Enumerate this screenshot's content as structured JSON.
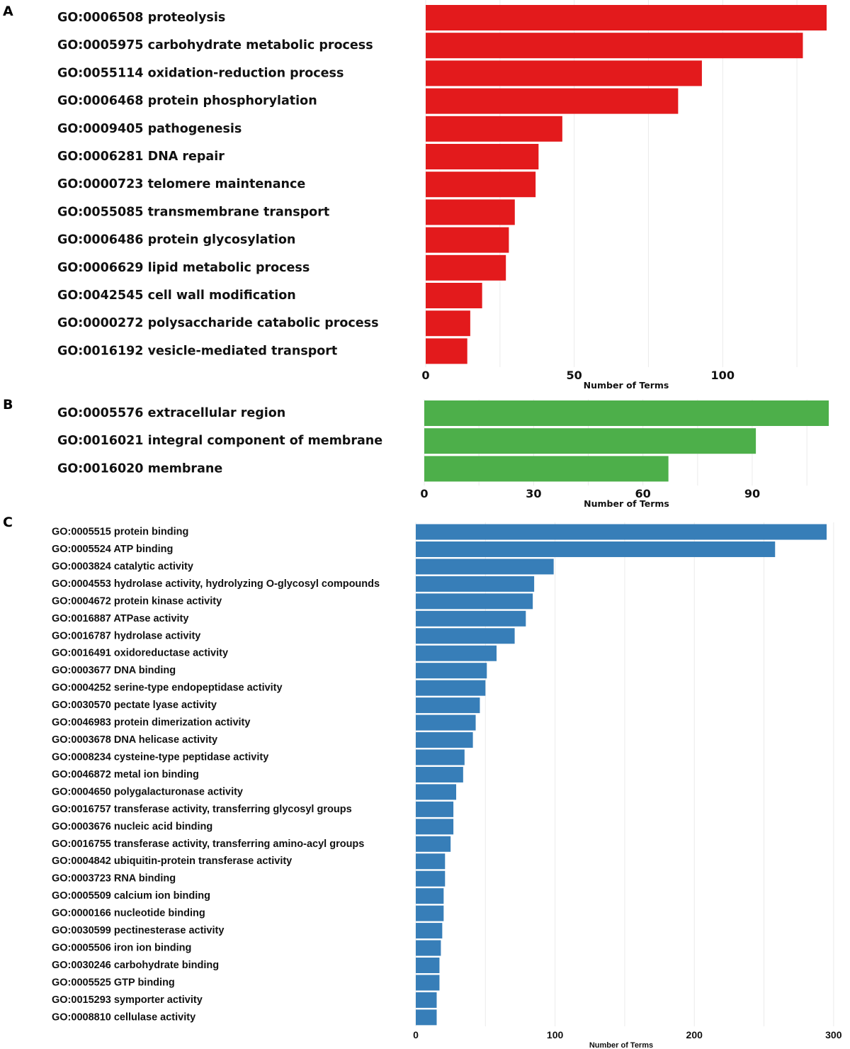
{
  "chart_data": [
    {
      "panel": "A",
      "type": "bar",
      "orientation": "horizontal",
      "color": "#e31a1c",
      "xlabel": "Number of Terms",
      "xlim": [
        0,
        135
      ],
      "xticks": [
        0,
        50,
        100
      ],
      "categories": [
        "GO:0006508 proteolysis",
        "GO:0005975 carbohydrate metabolic process",
        "GO:0055114 oxidation-reduction process",
        "GO:0006468 protein phosphorylation",
        "GO:0009405 pathogenesis",
        "GO:0006281 DNA repair",
        "GO:0000723 telomere maintenance",
        "GO:0055085 transmembrane transport",
        "GO:0006486 protein glycosylation",
        "GO:0006629 lipid metabolic process",
        "GO:0042545 cell wall modification",
        "GO:0000272 polysaccharide catabolic process",
        "GO:0016192 vesicle-mediated transport"
      ],
      "values": [
        135,
        127,
        93,
        85,
        46,
        38,
        37,
        30,
        28,
        27,
        19,
        15,
        14
      ]
    },
    {
      "panel": "B",
      "type": "bar",
      "orientation": "horizontal",
      "color": "#4daf4a",
      "xlabel": "Number of Terms",
      "xlim": [
        0,
        111
      ],
      "xticks": [
        0,
        30,
        60,
        90
      ],
      "categories": [
        "GO:0005576 extracellular region",
        "GO:0016021 integral component of membrane",
        "GO:0016020 membrane"
      ],
      "values": [
        111,
        91,
        67
      ]
    },
    {
      "panel": "C",
      "type": "bar",
      "orientation": "horizontal",
      "color": "#377eb8",
      "xlabel": "Number of Terms",
      "xlim": [
        0,
        295
      ],
      "xticks": [
        0,
        100,
        200,
        300
      ],
      "categories": [
        "GO:0005515 protein binding",
        "GO:0005524 ATP binding",
        "GO:0003824 catalytic activity",
        "GO:0004553 hydrolase activity, hydrolyzing O-glycosyl compounds",
        "GO:0004672 protein kinase activity",
        "GO:0016887 ATPase activity",
        "GO:0016787 hydrolase activity",
        "GO:0016491 oxidoreductase activity",
        "GO:0003677 DNA binding",
        "GO:0004252 serine-type endopeptidase activity",
        "GO:0030570 pectate lyase activity",
        "GO:0046983 protein dimerization activity",
        "GO:0003678 DNA helicase activity",
        "GO:0008234 cysteine-type peptidase activity",
        "GO:0046872 metal ion binding",
        "GO:0004650 polygalacturonase activity",
        "GO:0016757 transferase activity, transferring glycosyl groups",
        "GO:0003676 nucleic acid binding",
        "GO:0016755 transferase activity, transferring amino-acyl groups",
        "GO:0004842 ubiquitin-protein transferase activity",
        "GO:0003723 RNA binding",
        "GO:0005509 calcium ion binding",
        "GO:0000166 nucleotide binding",
        "GO:0030599 pectinesterase activity",
        "GO:0005506 iron ion binding",
        "GO:0030246 carbohydrate binding",
        "GO:0005525 GTP binding",
        "GO:0015293 symporter activity",
        "GO:0008810 cellulase activity"
      ],
      "values": [
        295,
        258,
        99,
        85,
        84,
        79,
        71,
        58,
        51,
        50,
        46,
        43,
        41,
        35,
        34,
        29,
        27,
        27,
        25,
        21,
        21,
        20,
        20,
        19,
        18,
        17,
        17,
        15,
        15
      ]
    }
  ]
}
